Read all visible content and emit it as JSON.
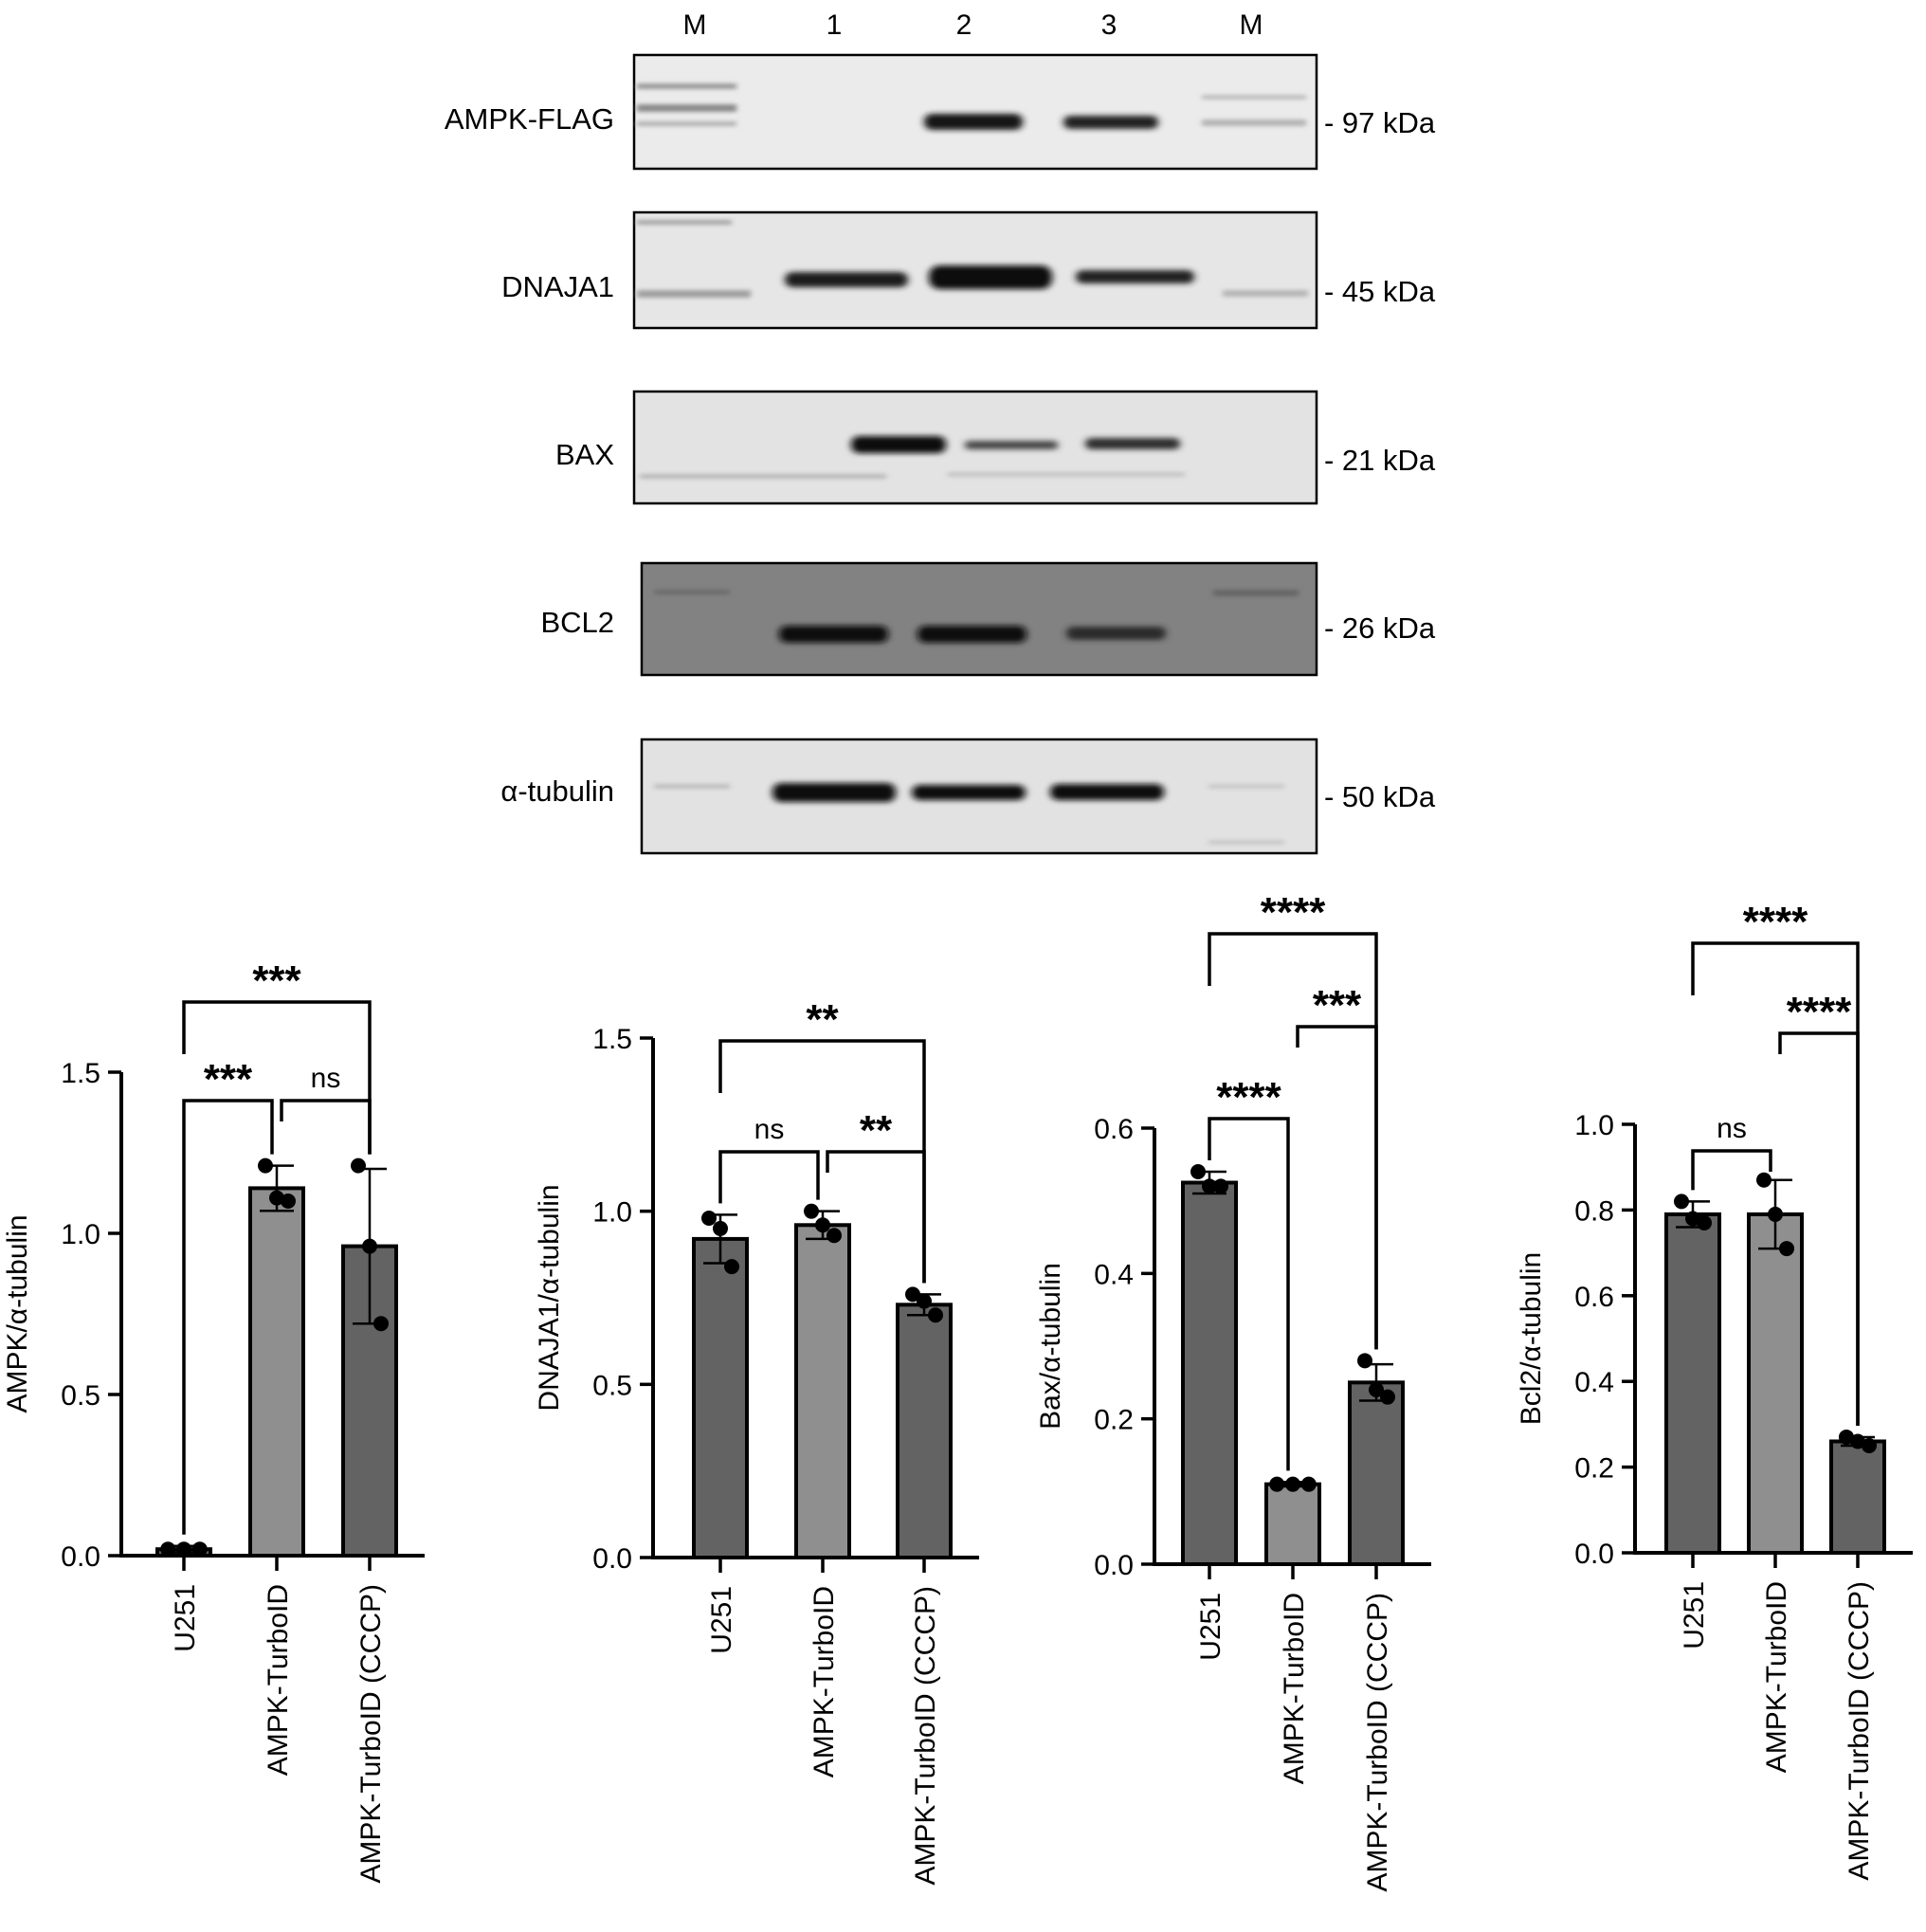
{
  "blot": {
    "lane_labels": [
      "M",
      "1",
      "2",
      "3",
      "M"
    ],
    "rows": [
      {
        "label": "AMPK-FLAG",
        "size": "- 97 kDa"
      },
      {
        "label": "DNAJA1",
        "size": "- 45 kDa"
      },
      {
        "label": "BAX",
        "size": "- 21 kDa"
      },
      {
        "label": "BCL2",
        "size": "- 26 kDa"
      },
      {
        "label": "α-tubulin",
        "size": "- 50 kDa"
      }
    ]
  },
  "chart_data": [
    {
      "type": "bar",
      "categories": [
        "U251",
        "AMPK-TurboID",
        "AMPK-TurboID (CCCP)"
      ],
      "values": [
        0.02,
        1.14,
        0.96
      ],
      "error": [
        0.01,
        0.07,
        0.24
      ],
      "points": [
        [
          0.02,
          0.02,
          0.02
        ],
        [
          1.21,
          1.11,
          1.1
        ],
        [
          1.21,
          0.96,
          0.72
        ]
      ],
      "ylabel": "AMPK/α-tubulin",
      "ylim": [
        0,
        1.5
      ],
      "yticks": [
        "0.0",
        "0.5",
        "1.0",
        "1.5"
      ],
      "comparisons": [
        {
          "from": 0,
          "to": 1,
          "label": "***"
        },
        {
          "from": 1,
          "to": 2,
          "label": "ns"
        },
        {
          "from": 0,
          "to": 2,
          "label": "***"
        }
      ]
    },
    {
      "type": "bar",
      "categories": [
        "U251",
        "AMPK-TurboID",
        "AMPK-TurboID (CCCP)"
      ],
      "values": [
        0.92,
        0.96,
        0.73
      ],
      "error": [
        0.07,
        0.04,
        0.03
      ],
      "points": [
        [
          0.98,
          0.95,
          0.84
        ],
        [
          1.0,
          0.96,
          0.93
        ],
        [
          0.76,
          0.74,
          0.7
        ]
      ],
      "ylabel": "DNAJA1/α-tubulin",
      "ylim": [
        0,
        1.5
      ],
      "yticks": [
        "0.0",
        "0.5",
        "1.0",
        "1.5"
      ],
      "comparisons": [
        {
          "from": 0,
          "to": 1,
          "label": "ns"
        },
        {
          "from": 1,
          "to": 2,
          "label": "**"
        },
        {
          "from": 0,
          "to": 2,
          "label": "**"
        }
      ]
    },
    {
      "type": "bar",
      "categories": [
        "U251",
        "AMPK-TurboID",
        "AMPK-TurboID (CCCP)"
      ],
      "values": [
        0.525,
        0.11,
        0.25
      ],
      "error": [
        0.015,
        0.003,
        0.025
      ],
      "points": [
        [
          0.54,
          0.52,
          0.52
        ],
        [
          0.11,
          0.11,
          0.11
        ],
        [
          0.28,
          0.24,
          0.23
        ]
      ],
      "ylabel": "Bax/α-tubulin",
      "ylim": [
        0,
        0.6
      ],
      "yticks": [
        "0.0",
        "0.2",
        "0.4",
        "0.6"
      ],
      "comparisons": [
        {
          "from": 0,
          "to": 1,
          "label": "****"
        },
        {
          "from": 1,
          "to": 2,
          "label": "***"
        },
        {
          "from": 0,
          "to": 2,
          "label": "****"
        }
      ]
    },
    {
      "type": "bar",
      "categories": [
        "U251",
        "AMPK-TurboID",
        "AMPK-TurboID (CCCP)"
      ],
      "values": [
        0.79,
        0.79,
        0.26
      ],
      "error": [
        0.03,
        0.08,
        0.01
      ],
      "points": [
        [
          0.82,
          0.78,
          0.77
        ],
        [
          0.87,
          0.79,
          0.71
        ],
        [
          0.27,
          0.26,
          0.25
        ]
      ],
      "ylabel": "Bcl2/α-tubulin",
      "ylim": [
        0,
        1.0
      ],
      "yticks": [
        "0.0",
        "0.2",
        "0.4",
        "0.6",
        "0.8",
        "1.0"
      ],
      "comparisons": [
        {
          "from": 0,
          "to": 1,
          "label": "ns"
        },
        {
          "from": 1,
          "to": 2,
          "label": "****"
        },
        {
          "from": 0,
          "to": 2,
          "label": "****"
        }
      ]
    }
  ],
  "colors": {
    "bar_dark": "#636363",
    "bar_light": "#8f8f8f",
    "blot_bg": "#e9e9e9",
    "blot_dark_bg": "#7e7e7e",
    "band": "#151515"
  }
}
